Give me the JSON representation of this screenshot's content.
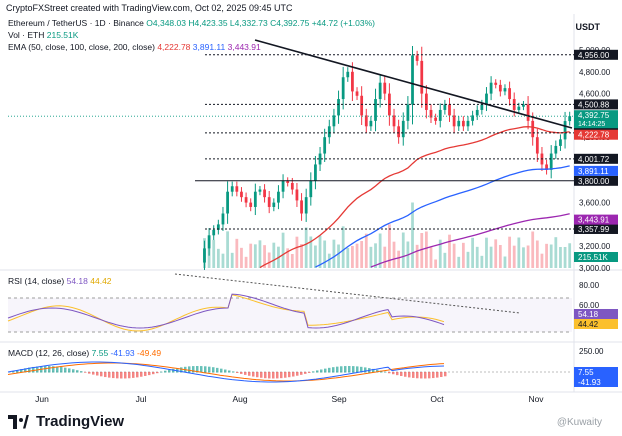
{
  "header": {
    "created_by": "CryptoFXStreet created with TradingView.com, Oct 02, 2025 09:45 UTC",
    "currency": "USDT"
  },
  "legend": {
    "symbol": "Ethereum / TetherUS · 1D · Binance",
    "ohlc": "O4,348.03  H4,423.35  L4,332.73  C4,392.75  +44.72 (+1.03%)",
    "vol_label": "Vol · ETH",
    "vol_value": "215.51K",
    "ema_label": "EMA (50, close, 100, close, 200, close)",
    "ema50": "4,222.78",
    "ema100": "3,891.11",
    "ema200": "3,443.91",
    "rsi_label": "RSI (14, close)",
    "rsi_value": "54.18",
    "rsi_ma": "44.42",
    "macd_label": "MACD (12, 26, close)",
    "macd_hist": "7.55",
    "macd_line": "-41.93",
    "macd_signal": "-49.49"
  },
  "colors": {
    "up": "#089981",
    "down": "#f23645",
    "ema50": "#e53935",
    "ema100": "#2962ff",
    "ema200": "#9c27b0",
    "rsi": "#7e57c2",
    "rsi_ma": "#fbc02d",
    "macd_line": "#2962ff",
    "macd_signal": "#ff6d00"
  },
  "chart_data": {
    "type": "candlestick",
    "title": "Ethereum / TetherUS · 1D · Binance",
    "x_ticks": [
      "Jun",
      "Jul",
      "Aug",
      "Sep",
      "Oct",
      "Nov"
    ],
    "y_ticks": [
      "5,000.00",
      "4,800.00",
      "4,600.00",
      "4,400.00",
      "4,200.00",
      "4,000.00",
      "3,800.00",
      "3,600.00",
      "3,400.00",
      "3,200.00",
      "3,000.00"
    ],
    "ylim": [
      3000,
      5000
    ],
    "closes": [
      2600,
      2620,
      2590,
      2640,
      2610,
      2580,
      2650,
      2700,
      2680,
      2720,
      2690,
      2650,
      2600,
      2550,
      2500,
      2450,
      2420,
      2440,
      2480,
      2500,
      2470,
      2430,
      2400,
      2380,
      2410,
      2450,
      2470,
      2500,
      2520,
      2540,
      2530,
      2520,
      2550,
      2580,
      2600,
      2650,
      2700,
      2760,
      2800,
      2900,
      2980,
      3050,
      3180,
      3300,
      3350,
      3400,
      3500,
      3700,
      3750,
      3700,
      3650,
      3600,
      3560,
      3700,
      3720,
      3650,
      3560,
      3600,
      3700,
      3800,
      3780,
      3720,
      3620,
      3500,
      3650,
      3800,
      3950,
      4050,
      4200,
      4300,
      4400,
      4550,
      4750,
      4800,
      4620,
      4580,
      4400,
      4300,
      4350,
      4550,
      4700,
      4600,
      4400,
      4300,
      4200,
      4350,
      4500,
      4950,
      4900,
      4600,
      4450,
      4380,
      4350,
      4450,
      4500,
      4400,
      4300,
      4350,
      4300,
      4350,
      4400,
      4450,
      4500,
      4600,
      4700,
      4680,
      4620,
      4650,
      4550,
      4450,
      4480,
      4500,
      4350,
      4200,
      4050,
      3950,
      3900,
      4050,
      4120,
      4180,
      4348,
      4392.75
    ],
    "ema50_last": 4222.78,
    "ema100_last": 3891.11,
    "ema200_last": 3443.91,
    "price_lines": [
      {
        "label": "4,956.00",
        "value": 4956
      },
      {
        "label": "4,500.88",
        "value": 4500.88
      },
      {
        "label": "4,239.31",
        "value": 4239.31
      },
      {
        "label": "4,001.72",
        "value": 4001.72
      },
      {
        "label": "3,800.00",
        "value": 3800
      },
      {
        "label": "3,357.99",
        "value": 3357.99
      }
    ],
    "last_price": {
      "label": "4,392.75",
      "countdown": "14:14:25",
      "value": 4392.75
    },
    "ema_tags": [
      {
        "label": "4,222.78",
        "value": 4222.78,
        "color": "#e53935"
      },
      {
        "label": "3,891.11",
        "value": 3891.11,
        "color": "#2962ff"
      },
      {
        "label": "3,443.91",
        "value": 3443.91,
        "color": "#9c27b0"
      }
    ],
    "volume_tag": "215.51K",
    "rsi_ticks": [
      "80.00",
      "60.00"
    ],
    "rsi_tags": [
      {
        "label": "54.18",
        "color": "#7e57c2"
      },
      {
        "label": "44.42",
        "color": "#fbc02d"
      }
    ],
    "macd_ticks": [
      "250.00"
    ],
    "macd_tags": [
      {
        "label": "7.55",
        "color": "#2962ff"
      },
      {
        "label": "-41.93",
        "color": "#2962ff"
      }
    ]
  },
  "footer": {
    "brand": "TradingView",
    "watermark": "@Kuwaity"
  }
}
